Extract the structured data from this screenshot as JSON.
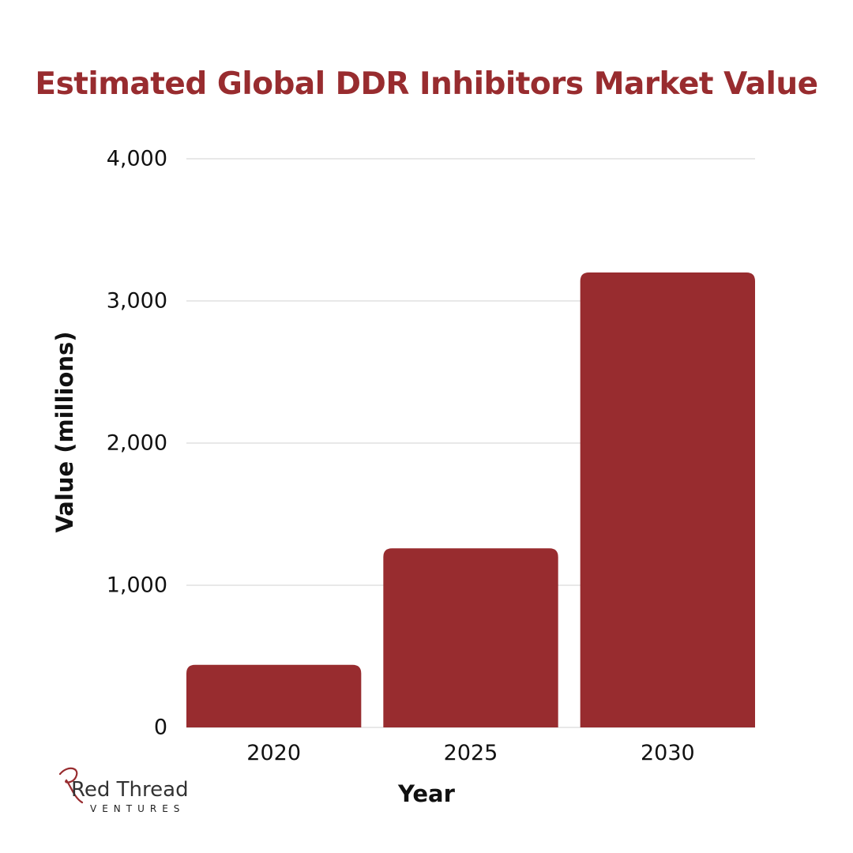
{
  "theme": {
    "accent": "#982c2f",
    "grid": "#d9d9d9",
    "text": "#111111"
  },
  "logo": {
    "name": "Red Thread",
    "tagline": "VENTURES",
    "initial_mark": "R"
  },
  "chart_data": {
    "type": "bar",
    "title": "Estimated Global DDR Inhibitors Market Value",
    "xlabel": "Year",
    "ylabel": "Value (millions)",
    "categories": [
      "2020",
      "2025",
      "2030"
    ],
    "values": [
      440,
      1260,
      3200
    ],
    "ylim": [
      0,
      4000
    ],
    "yticks": [
      0,
      1000,
      2000,
      3000,
      4000
    ],
    "ytick_labels": [
      "0",
      "1,000",
      "2,000",
      "3,000",
      "4,000"
    ],
    "grid": true,
    "legend": "none",
    "bar_color": "#982c2f"
  }
}
